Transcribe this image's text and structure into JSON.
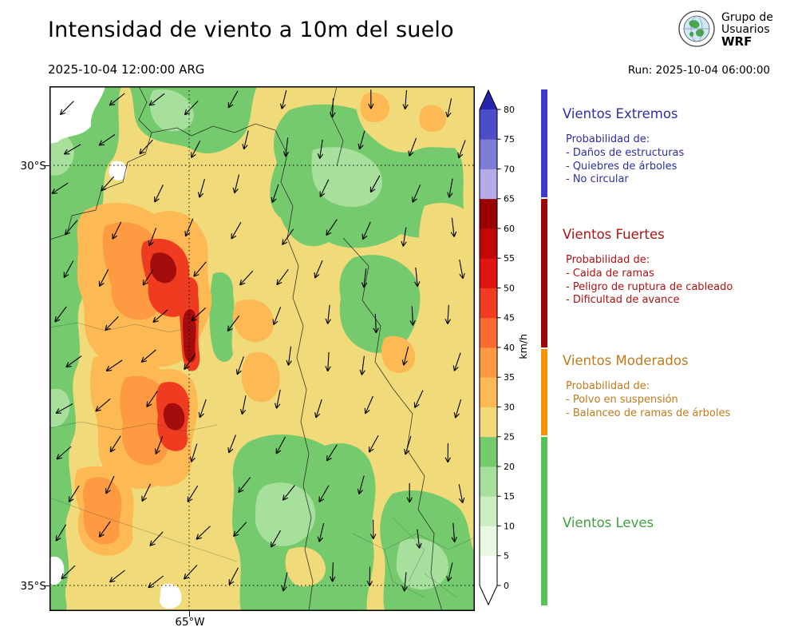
{
  "header": {
    "title": "Intensidad de viento a 10m del suelo",
    "valid_time": "2025-10-04 12:00:00 ARG",
    "run_label": "Run: 2025-10-04 06:00:00",
    "logo": {
      "line1": "Grupo de",
      "line2": "Usuarios",
      "line3": "WRF"
    }
  },
  "map": {
    "lat_labels": [
      "30°S",
      "35°S"
    ],
    "lon_label": "65°W"
  },
  "colorbar": {
    "unit": "km/h",
    "ticks": [
      0,
      5,
      10,
      15,
      20,
      25,
      30,
      35,
      40,
      45,
      50,
      55,
      60,
      65,
      70,
      75,
      80
    ],
    "segment_colors": [
      "#ffffff",
      "#e9f8e3",
      "#cdeec3",
      "#a6e09c",
      "#74ca6c",
      "#f1da7a",
      "#fcb954",
      "#fd9a42",
      "#fb6a31",
      "#f23b21",
      "#e01511",
      "#c20707",
      "#9b0000",
      "#b3abe8",
      "#7d7dd8",
      "#4d4dc9"
    ],
    "over_color": "#2424ad",
    "under_color": "#ffffff"
  },
  "legend": {
    "sections": [
      {
        "title": "Vientos Extremos",
        "color": "#2e2ea5",
        "bar_color": "#3c3ccc",
        "subtitle": "Probabilidad de:",
        "items": [
          "- Daños de estructuras",
          "- Quiebres de árboles",
          "- No circular"
        ]
      },
      {
        "title": "Vientos Fuertes",
        "color": "#b01212",
        "bar_color": "#9e0404",
        "subtitle": "Probabilidad de:",
        "items": [
          "- Caida de ramas",
          "- Peligro de ruptura de cableado",
          "- Dificultad de avance"
        ]
      },
      {
        "title": "Vientos Moderados",
        "color": "#c07a1a",
        "bar_color": "#f59300",
        "subtitle": "Probabilidad de:",
        "items": [
          "- Polvo en suspensión",
          "- Balanceo de ramas de árboles"
        ]
      },
      {
        "title": "Vientos Leves",
        "color": "#3f9e3f",
        "bar_color": "#57c357",
        "subtitle": "",
        "items": []
      }
    ]
  }
}
